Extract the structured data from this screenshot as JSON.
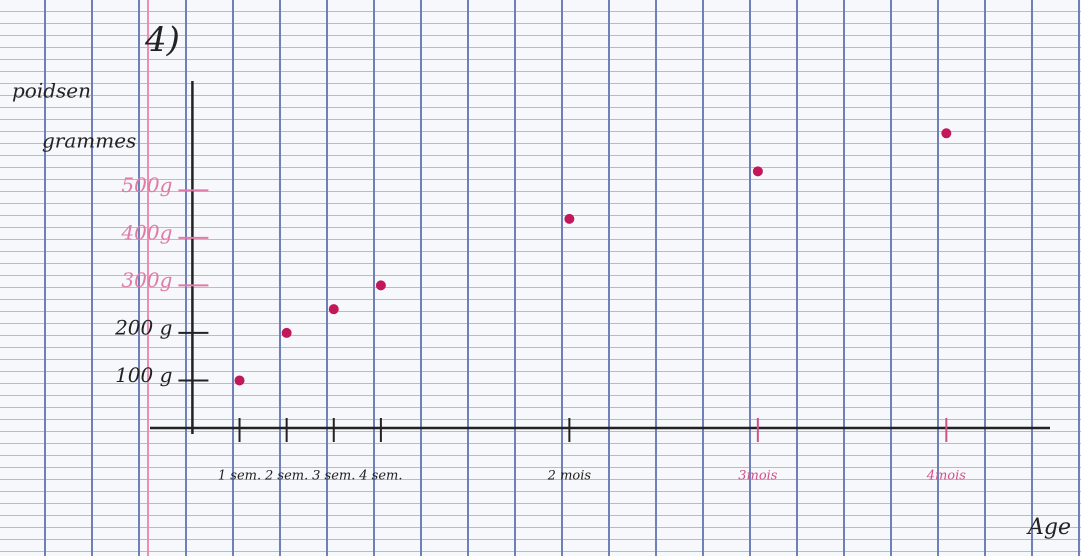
{
  "chart_data": {
    "type": "scatter",
    "title": "4)",
    "ylabel": [
      "poidsen",
      "grammes"
    ],
    "xlabel": "Age",
    "x": [
      1,
      2,
      3,
      4,
      8,
      12,
      16
    ],
    "series": [
      {
        "color": "#c2185b",
        "values": [
          100,
          200,
          250,
          300,
          440,
          540,
          620
        ]
      }
    ],
    "xlim": [
      -0.9,
      18.2
    ],
    "ylim": [
      0,
      730
    ],
    "xticks": [
      {
        "value": 1,
        "label": "1 sem."
      },
      {
        "value": 2,
        "label": "2 sem."
      },
      {
        "value": 3,
        "label": "3 sem."
      },
      {
        "value": 4,
        "label": "4 sem."
      },
      {
        "value": 8,
        "label": "2 mois"
      },
      {
        "value": 12,
        "label": "3mois"
      },
      {
        "value": 16,
        "label": "4mois"
      }
    ],
    "xtick_colors": [
      "#222",
      "#222",
      "#222",
      "#222",
      "#222",
      "#d0508a",
      "#d0508a"
    ],
    "yticks": [
      {
        "value": 100,
        "label": "100 g"
      },
      {
        "value": 200,
        "label": "200 g"
      },
      {
        "value": 300,
        "label": "300g"
      },
      {
        "value": 400,
        "label": "400g"
      },
      {
        "value": 500,
        "label": "500g"
      }
    ],
    "ytick_colors": [
      "#222",
      "#222",
      "#e07aa8",
      "#e07aa8",
      "#e07aa8"
    ]
  }
}
